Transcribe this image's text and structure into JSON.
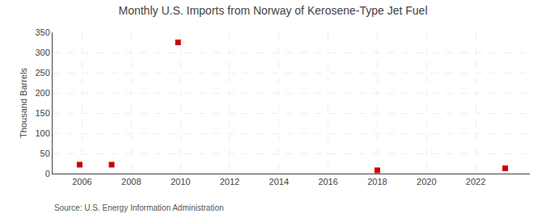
{
  "chart_data": {
    "type": "scatter",
    "title": "Monthly U.S. Imports from Norway of Kerosene-Type Jet Fuel",
    "ylabel": "Thousand Barrels",
    "annotations": [
      "Source: U.S. Energy Information Administration"
    ],
    "x": [
      2005.9,
      2007.2,
      2009.9,
      2018.0,
      2023.2
    ],
    "values": [
      22,
      22,
      325,
      8,
      13
    ],
    "color": "#cc0000",
    "marker": "square",
    "xlim": [
      2004.8,
      2024.2
    ],
    "xticks": [
      2006,
      2008,
      2010,
      2012,
      2014,
      2016,
      2018,
      2020,
      2022
    ],
    "ylim": [
      0,
      350
    ],
    "yticks": [
      0,
      50,
      100,
      150,
      200,
      250,
      300,
      350
    ],
    "grid": true
  }
}
